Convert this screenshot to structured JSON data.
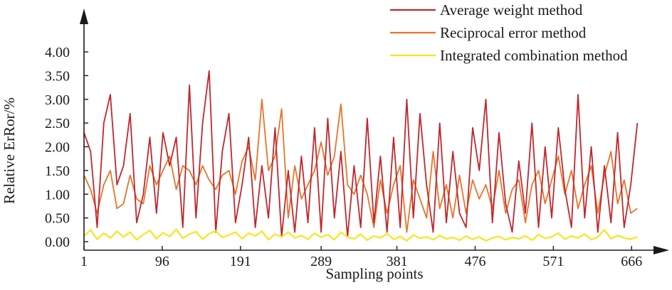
{
  "chart_data": {
    "type": "line",
    "xlabel": "Sampling points",
    "ylabel": "Relative ErRor/%",
    "xlim": [
      1,
      690
    ],
    "ylim": [
      -0.05,
      4.6
    ],
    "xticks": [
      1,
      96,
      191,
      289,
      381,
      476,
      571,
      666
    ],
    "xtick_labels": [
      "1",
      "96",
      "191",
      "289",
      "381",
      "476",
      "571",
      "666"
    ],
    "yticks": [
      0,
      0.5,
      1,
      1.5,
      2,
      2.5,
      3,
      3.5,
      4
    ],
    "ytick_labels": [
      "0.00",
      "0.50",
      "1.00",
      "1.50",
      "2.00",
      "2.50",
      "3.00",
      "3.50",
      "4.00"
    ],
    "grid": false,
    "legend_position": "top-right",
    "x": [
      1,
      9,
      17,
      25,
      33,
      41,
      49,
      57,
      65,
      73,
      81,
      89,
      97,
      105,
      113,
      121,
      129,
      137,
      145,
      153,
      161,
      169,
      177,
      185,
      193,
      201,
      209,
      217,
      225,
      233,
      241,
      249,
      257,
      265,
      273,
      281,
      289,
      297,
      305,
      313,
      321,
      329,
      337,
      345,
      353,
      361,
      369,
      377,
      385,
      393,
      401,
      409,
      417,
      425,
      433,
      441,
      449,
      457,
      465,
      473,
      481,
      489,
      497,
      505,
      513,
      521,
      529,
      537,
      545,
      553,
      561,
      569,
      577,
      585,
      593,
      601,
      609,
      617,
      625,
      633,
      641,
      649,
      657,
      665,
      673
    ],
    "series": [
      {
        "name": "Average weight method",
        "color": "#c0272d",
        "values": [
          2.3,
          1.9,
          0.3,
          2.5,
          3.1,
          1.2,
          1.6,
          2.7,
          0.4,
          1.0,
          2.2,
          0.6,
          2.3,
          1.6,
          2.2,
          0.3,
          3.3,
          0.5,
          2.5,
          3.6,
          0.2,
          1.9,
          2.7,
          0.4,
          1.2,
          2.2,
          0.3,
          1.6,
          0.5,
          2.4,
          0.1,
          1.5,
          0.2,
          1.8,
          0.4,
          2.4,
          0.2,
          2.6,
          0.5,
          1.9,
          0.1,
          1.6,
          0.3,
          2.6,
          0.4,
          1.8,
          0.2,
          2.2,
          0.3,
          3.0,
          0.5,
          2.7,
          1.2,
          0.2,
          2.5,
          0.4,
          1.9,
          0.6,
          0.3,
          2.4,
          1.5,
          3.0,
          0.4,
          2.3,
          0.8,
          0.2,
          1.7,
          0.6,
          2.5,
          0.3,
          2.0,
          0.5,
          2.4,
          1.1,
          0.3,
          3.1,
          0.5,
          2.0,
          0.2,
          1.6,
          0.4,
          2.3,
          0.3,
          1.2,
          2.5
        ]
      },
      {
        "name": "Reciprocal error method",
        "color": "#e8742a",
        "values": [
          1.4,
          1.1,
          0.6,
          1.2,
          1.5,
          0.7,
          0.8,
          1.4,
          0.9,
          0.8,
          1.6,
          1.2,
          1.5,
          1.8,
          1.1,
          1.6,
          1.5,
          1.2,
          1.6,
          1.3,
          1.1,
          1.4,
          1.5,
          1.0,
          1.7,
          2.0,
          1.3,
          3.0,
          1.5,
          1.8,
          2.8,
          0.5,
          1.6,
          0.9,
          1.2,
          1.5,
          2.1,
          1.4,
          1.8,
          2.9,
          1.2,
          1.0,
          1.4,
          1.0,
          0.3,
          1.3,
          0.6,
          1.2,
          1.6,
          0.2,
          1.3,
          0.9,
          0.5,
          1.9,
          0.7,
          1.2,
          0.5,
          1.4,
          0.6,
          1.3,
          0.9,
          1.2,
          0.7,
          1.5,
          0.6,
          1.1,
          1.3,
          0.4,
          1.2,
          1.5,
          0.8,
          1.3,
          1.8,
          1.0,
          1.5,
          0.7,
          1.2,
          1.6,
          0.6,
          1.4,
          1.9,
          0.8,
          1.3,
          0.6,
          0.7
        ]
      },
      {
        "name": "Integrated combination method",
        "color": "#f5e61e",
        "values": [
          0.12,
          0.25,
          0.05,
          0.18,
          0.08,
          0.22,
          0.1,
          0.2,
          0.04,
          0.15,
          0.24,
          0.06,
          0.19,
          0.11,
          0.26,
          0.07,
          0.16,
          0.21,
          0.05,
          0.17,
          0.23,
          0.09,
          0.14,
          0.2,
          0.06,
          0.18,
          0.12,
          0.22,
          0.04,
          0.16,
          0.1,
          0.2,
          0.08,
          0.13,
          0.05,
          0.18,
          0.09,
          0.15,
          0.04,
          0.2,
          0.1,
          0.06,
          0.16,
          0.03,
          0.12,
          0.08,
          0.17,
          0.05,
          0.11,
          0.02,
          0.14,
          0.07,
          0.1,
          0.04,
          0.13,
          0.06,
          0.09,
          0.03,
          0.12,
          0.05,
          0.1,
          0.02,
          0.08,
          0.11,
          0.04,
          0.09,
          0.06,
          0.12,
          0.03,
          0.15,
          0.07,
          0.1,
          0.18,
          0.05,
          0.12,
          0.08,
          0.16,
          0.04,
          0.1,
          0.25,
          0.06,
          0.13,
          0.08,
          0.05,
          0.1
        ]
      }
    ]
  }
}
